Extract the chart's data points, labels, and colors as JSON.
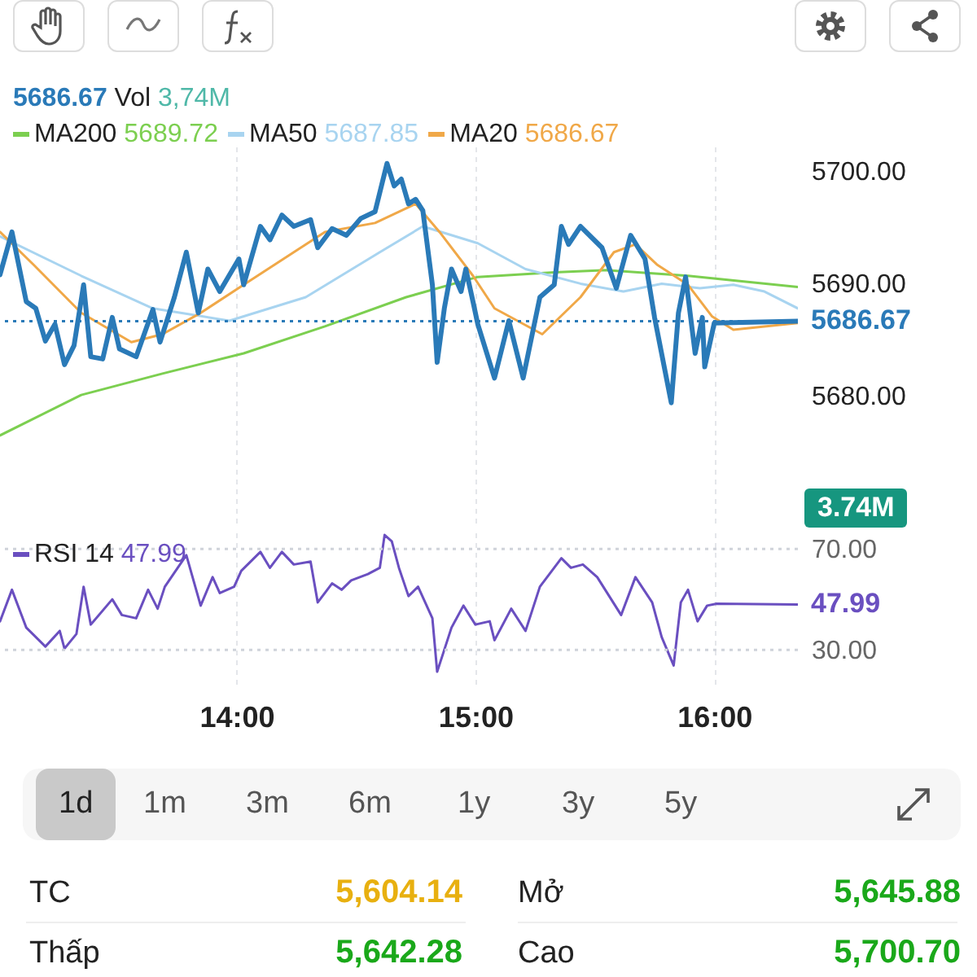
{
  "chart_data": [
    {
      "type": "line",
      "legend": "top left",
      "tick_labels": "y",
      "grid": "x",
      "xlim": [
        13.01,
        16.35
      ],
      "ylim": [
        5668.3,
        5702.2
      ],
      "xticks": [
        {
          "value": 14,
          "label": null
        },
        {
          "value": 15,
          "label": null
        },
        {
          "value": 16,
          "label": null
        }
      ],
      "yticks": [
        {
          "value": 5680,
          "label": "5680.00"
        },
        {
          "value": 5690,
          "label": "5690.00"
        },
        {
          "value": 5700,
          "label": "5700.00"
        }
      ],
      "annotations": [
        "5686.67",
        "Vol 3,74M",
        "3.74M"
      ],
      "ref_lines": [
        {
          "axis": "y",
          "value": 5686.67,
          "label": "5686.67",
          "color": "#2a7ab8",
          "line_style": "dotted"
        }
      ],
      "series": [
        {
          "name": "MA200 5689.72",
          "color": "#7ccf50",
          "x": [
            13.01,
            13.35,
            13.69,
            14.03,
            14.37,
            14.71,
            15.01,
            15.33,
            15.55,
            15.89,
            16.35
          ],
          "values": [
            5676.5,
            5680.1,
            5682.0,
            5683.8,
            5686.2,
            5688.8,
            5690.6,
            5691.0,
            5691.2,
            5690.7,
            5689.7
          ]
        },
        {
          "name": "MA50 5687.85",
          "color": "#a8d4f0",
          "x": [
            13.01,
            13.35,
            13.65,
            13.97,
            14.29,
            14.6,
            14.78,
            15.01,
            15.21,
            15.44,
            15.62,
            15.78,
            15.94,
            16.08,
            16.21,
            16.35
          ],
          "values": [
            5694.2,
            5690.7,
            5687.8,
            5686.7,
            5688.8,
            5692.8,
            5695.1,
            5693.6,
            5691.3,
            5690.0,
            5689.3,
            5690.0,
            5689.6,
            5689.9,
            5689.3,
            5687.8
          ]
        },
        {
          "name": "MA20 5686.67",
          "color": "#f0a848",
          "x": [
            13.01,
            13.15,
            13.35,
            13.56,
            13.69,
            13.85,
            14.03,
            14.24,
            14.37,
            14.58,
            14.75,
            14.85,
            14.99,
            15.08,
            15.28,
            15.44,
            15.58,
            15.67,
            15.76,
            15.89,
            15.99,
            16.08,
            16.21,
            16.35
          ],
          "values": [
            5694.6,
            5691.7,
            5687.4,
            5684.8,
            5685.5,
            5687.4,
            5689.9,
            5692.8,
            5694.6,
            5695.4,
            5697.1,
            5694.6,
            5690.7,
            5687.8,
            5685.5,
            5688.8,
            5692.8,
            5693.5,
            5691.7,
            5689.9,
            5687.1,
            5685.9,
            5686.2,
            5686.5
          ]
        },
        {
          "color": "#2a7ab8",
          "x": [
            13.01,
            13.06,
            13.12,
            13.16,
            13.2,
            13.24,
            13.28,
            13.32,
            13.36,
            13.39,
            13.44,
            13.48,
            13.51,
            13.58,
            13.65,
            13.68,
            13.74,
            13.79,
            13.84,
            13.88,
            13.93,
            14.01,
            14.03,
            14.1,
            14.14,
            14.19,
            14.24,
            14.31,
            14.34,
            14.4,
            14.46,
            14.52,
            14.58,
            14.63,
            14.66,
            14.69,
            14.72,
            14.75,
            14.78,
            14.82,
            14.84,
            14.87,
            14.9,
            14.94,
            14.96,
            14.99,
            15.01,
            15.08,
            15.14,
            15.2,
            15.27,
            15.33,
            15.36,
            15.39,
            15.44,
            15.53,
            15.59,
            15.65,
            15.71,
            15.75,
            15.82,
            15.85,
            15.88,
            15.92,
            15.95,
            15.96,
            16.0,
            16.35
          ],
          "values": [
            5690.8,
            5694.6,
            5688.4,
            5687.8,
            5684.9,
            5686.4,
            5682.8,
            5684.5,
            5689.9,
            5683.5,
            5683.3,
            5687.0,
            5684.2,
            5683.5,
            5687.7,
            5684.8,
            5688.8,
            5692.8,
            5687.4,
            5691.3,
            5689.3,
            5692.2,
            5689.9,
            5695.1,
            5693.9,
            5696.1,
            5695.1,
            5695.7,
            5693.2,
            5694.9,
            5694.3,
            5695.8,
            5696.4,
            5700.7,
            5698.7,
            5699.3,
            5697.1,
            5697.5,
            5696.5,
            5689.9,
            5683.0,
            5687.8,
            5691.3,
            5689.3,
            5691.3,
            5688.4,
            5686.4,
            5681.6,
            5686.7,
            5681.6,
            5688.8,
            5689.9,
            5695.1,
            5693.5,
            5695.1,
            5693.2,
            5689.6,
            5694.3,
            5692.2,
            5687.0,
            5679.4,
            5687.4,
            5690.6,
            5683.8,
            5687.0,
            5682.6,
            5686.5,
            5686.67
          ]
        }
      ]
    },
    {
      "type": "line",
      "legend": "top left",
      "grid": "x",
      "xlim": [
        13.01,
        16.35
      ],
      "ylim": [
        16.5,
        76.5
      ],
      "xticks": [
        {
          "value": 14,
          "label": "14:00"
        },
        {
          "value": 15,
          "label": "15:00"
        },
        {
          "value": 16,
          "label": "16:00"
        }
      ],
      "yticks": [
        {
          "value": 30,
          "label": "30.00"
        },
        {
          "value": 70,
          "label": "70.00"
        }
      ],
      "ref_lines": [
        {
          "axis": "y",
          "value": 70,
          "color": "#cfd3da",
          "line_style": "dotted"
        },
        {
          "axis": "y",
          "value": 30,
          "color": "#cfd3da",
          "line_style": "dotted"
        }
      ],
      "annotations": [
        {
          "text": "47.99",
          "x": 16.35,
          "y": 47.99
        }
      ],
      "series": [
        {
          "name": "RSI 14 47.99",
          "color": "#6a4fc0",
          "x": [
            13.01,
            13.06,
            13.12,
            13.2,
            13.26,
            13.28,
            13.33,
            13.36,
            13.39,
            13.48,
            13.52,
            13.58,
            13.63,
            13.67,
            13.7,
            13.79,
            13.85,
            13.9,
            13.93,
            13.99,
            14.02,
            14.1,
            14.14,
            14.19,
            14.24,
            14.31,
            14.34,
            14.4,
            14.44,
            14.48,
            14.55,
            14.6,
            14.62,
            14.65,
            14.68,
            14.72,
            14.76,
            14.82,
            14.84,
            14.9,
            14.95,
            15.0,
            15.06,
            15.08,
            15.15,
            15.21,
            15.27,
            15.36,
            15.4,
            15.45,
            15.51,
            15.61,
            15.67,
            15.74,
            15.78,
            15.83,
            15.86,
            15.89,
            15.93,
            15.97,
            16.01,
            16.35
          ],
          "values": [
            41.3,
            53.8,
            38.8,
            31.3,
            37.5,
            30.5,
            36.3,
            55,
            40,
            50,
            43.8,
            42.5,
            53.8,
            46.3,
            55,
            67.5,
            47.5,
            58.8,
            52.5,
            55,
            61.3,
            68.8,
            62.5,
            68.8,
            63.8,
            65,
            48.8,
            56.3,
            53.8,
            57.5,
            60,
            62.5,
            75.5,
            73,
            62.5,
            51.3,
            55,
            42.5,
            21.3,
            38.8,
            47.5,
            40,
            41.3,
            33.8,
            46.3,
            37.5,
            55,
            66.3,
            62.5,
            63.8,
            58.8,
            43.8,
            58.8,
            48.8,
            35,
            23.8,
            48.8,
            53.8,
            41.3,
            47.5,
            48.3,
            47.99
          ]
        }
      ]
    },
    {
      "type": "other",
      "annotations": [
        "1d",
        "1m",
        "3m",
        "6m",
        "1y",
        "3y",
        "5y",
        "TC",
        "5,604.14",
        "Mở",
        "5,645.88",
        "Thấp",
        "5,642.28",
        "Cao",
        "5,700.70"
      ]
    }
  ]
}
